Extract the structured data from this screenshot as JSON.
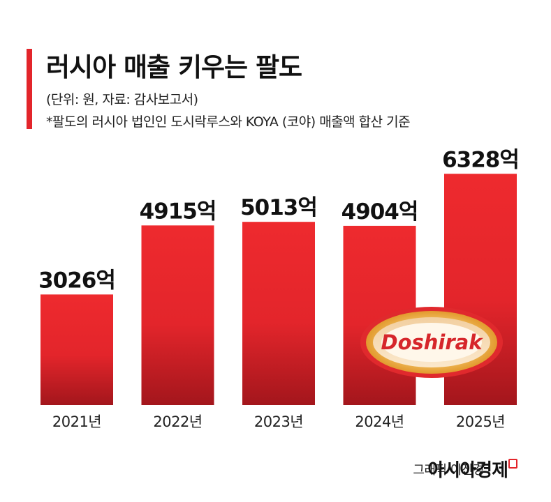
{
  "header": {
    "title": "러시아 매출 키우는 팔도",
    "unit_note": "(단위: 원, 자료: 감사보고서)",
    "basis_note": "*팔도의 러시아 법인인 도시락루스와 KOYA (코야) 매출액 합산 기준"
  },
  "colors": {
    "accent": "#e3252b",
    "bar_top": "#ee2a2e",
    "bar_bottom": "#a3161c",
    "logo_text": "#d6262b"
  },
  "chart_data": {
    "type": "bar",
    "categories": [
      "2021년",
      "2022년",
      "2023년",
      "2024년",
      "2025년"
    ],
    "values": [
      3026,
      4915,
      5013,
      4904,
      6328
    ],
    "value_labels": [
      "3026억",
      "4915억",
      "5013억",
      "4904억",
      "6328억"
    ],
    "unit": "억",
    "ylim": [
      0,
      6600
    ],
    "grid": false,
    "legend": "none"
  },
  "logo": {
    "text": "Doshirak"
  },
  "footer": {
    "credit": "그래픽 이진경",
    "brand": "아시아경제"
  }
}
